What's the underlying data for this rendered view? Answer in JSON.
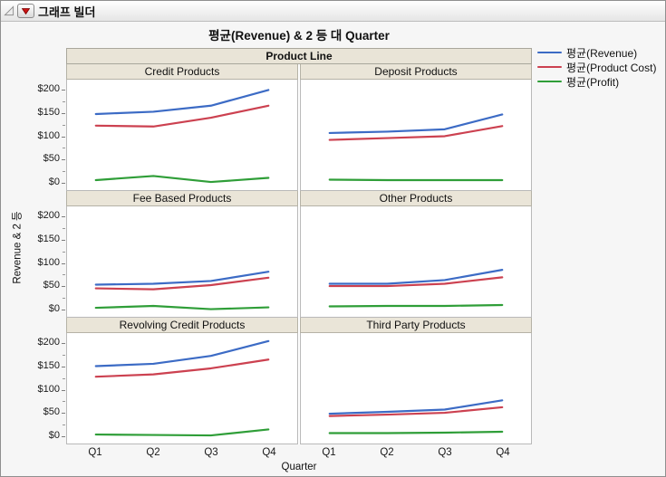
{
  "window": {
    "title": "그래프 빌더"
  },
  "chart": {
    "title": "평균(Revenue) & 2 등 대 Quarter",
    "group_header": "Product Line",
    "x_axis_title": "Quarter",
    "y_axis_title": "Revenue & 2 등"
  },
  "legend": {
    "items": [
      {
        "label": "평균(Revenue)",
        "color": "#3c6bc5"
      },
      {
        "label": "평균(Product Cost)",
        "color": "#cc4150"
      },
      {
        "label": "평균(Profit)",
        "color": "#2f9e38"
      }
    ]
  },
  "chart_data": {
    "type": "line",
    "facet": "Product Line",
    "x": [
      "Q1",
      "Q2",
      "Q3",
      "Q4"
    ],
    "y_unit": "$",
    "y_ticks": [
      0,
      50,
      100,
      150,
      200
    ],
    "y_minor_ticks": [
      25,
      75,
      125,
      175
    ],
    "ylim": [
      -17,
      220
    ],
    "grid": false,
    "legend_position": "right",
    "panels": [
      {
        "title": "Credit Products",
        "series": [
          {
            "name": "평균(Revenue)",
            "values": [
              147,
              152,
              165,
              199
            ]
          },
          {
            "name": "평균(Product Cost)",
            "values": [
              122,
              120,
              139,
              165
            ]
          },
          {
            "name": "평균(Profit)",
            "values": [
              4,
              13,
              0,
              9
            ]
          }
        ]
      },
      {
        "title": "Deposit Products",
        "series": [
          {
            "name": "평균(Revenue)",
            "values": [
              106,
              109,
              114,
              146
            ]
          },
          {
            "name": "평균(Product Cost)",
            "values": [
              91,
              95,
              99,
              121
            ]
          },
          {
            "name": "평균(Profit)",
            "values": [
              5,
              4,
              4,
              4
            ]
          }
        ]
      },
      {
        "title": "Fee Based Products",
        "series": [
          {
            "name": "평균(Revenue)",
            "values": [
              52,
              54,
              60,
              80
            ]
          },
          {
            "name": "평균(Product Cost)",
            "values": [
              44,
              42,
              51,
              67
            ]
          },
          {
            "name": "평균(Profit)",
            "values": [
              2,
              6,
              -1,
              3
            ]
          }
        ]
      },
      {
        "title": "Other Products",
        "series": [
          {
            "name": "평균(Revenue)",
            "values": [
              54,
              54,
              62,
              84
            ]
          },
          {
            "name": "평균(Product Cost)",
            "values": [
              49,
              49,
              54,
              68
            ]
          },
          {
            "name": "평균(Profit)",
            "values": [
              5,
              6,
              6,
              8
            ]
          }
        ]
      },
      {
        "title": "Revolving Credit Products",
        "series": [
          {
            "name": "평균(Revenue)",
            "values": [
              150,
              155,
              172,
              204
            ]
          },
          {
            "name": "평균(Product Cost)",
            "values": [
              127,
              132,
              145,
              164
            ]
          },
          {
            "name": "평균(Profit)",
            "values": [
              2,
              1,
              0,
              13
            ]
          }
        ]
      },
      {
        "title": "Third Party Products",
        "series": [
          {
            "name": "평균(Revenue)",
            "values": [
              47,
              51,
              56,
              76
            ]
          },
          {
            "name": "평균(Product Cost)",
            "values": [
              42,
              45,
              49,
              61
            ]
          },
          {
            "name": "평균(Profit)",
            "values": [
              5,
              5,
              6,
              8
            ]
          }
        ]
      }
    ]
  }
}
